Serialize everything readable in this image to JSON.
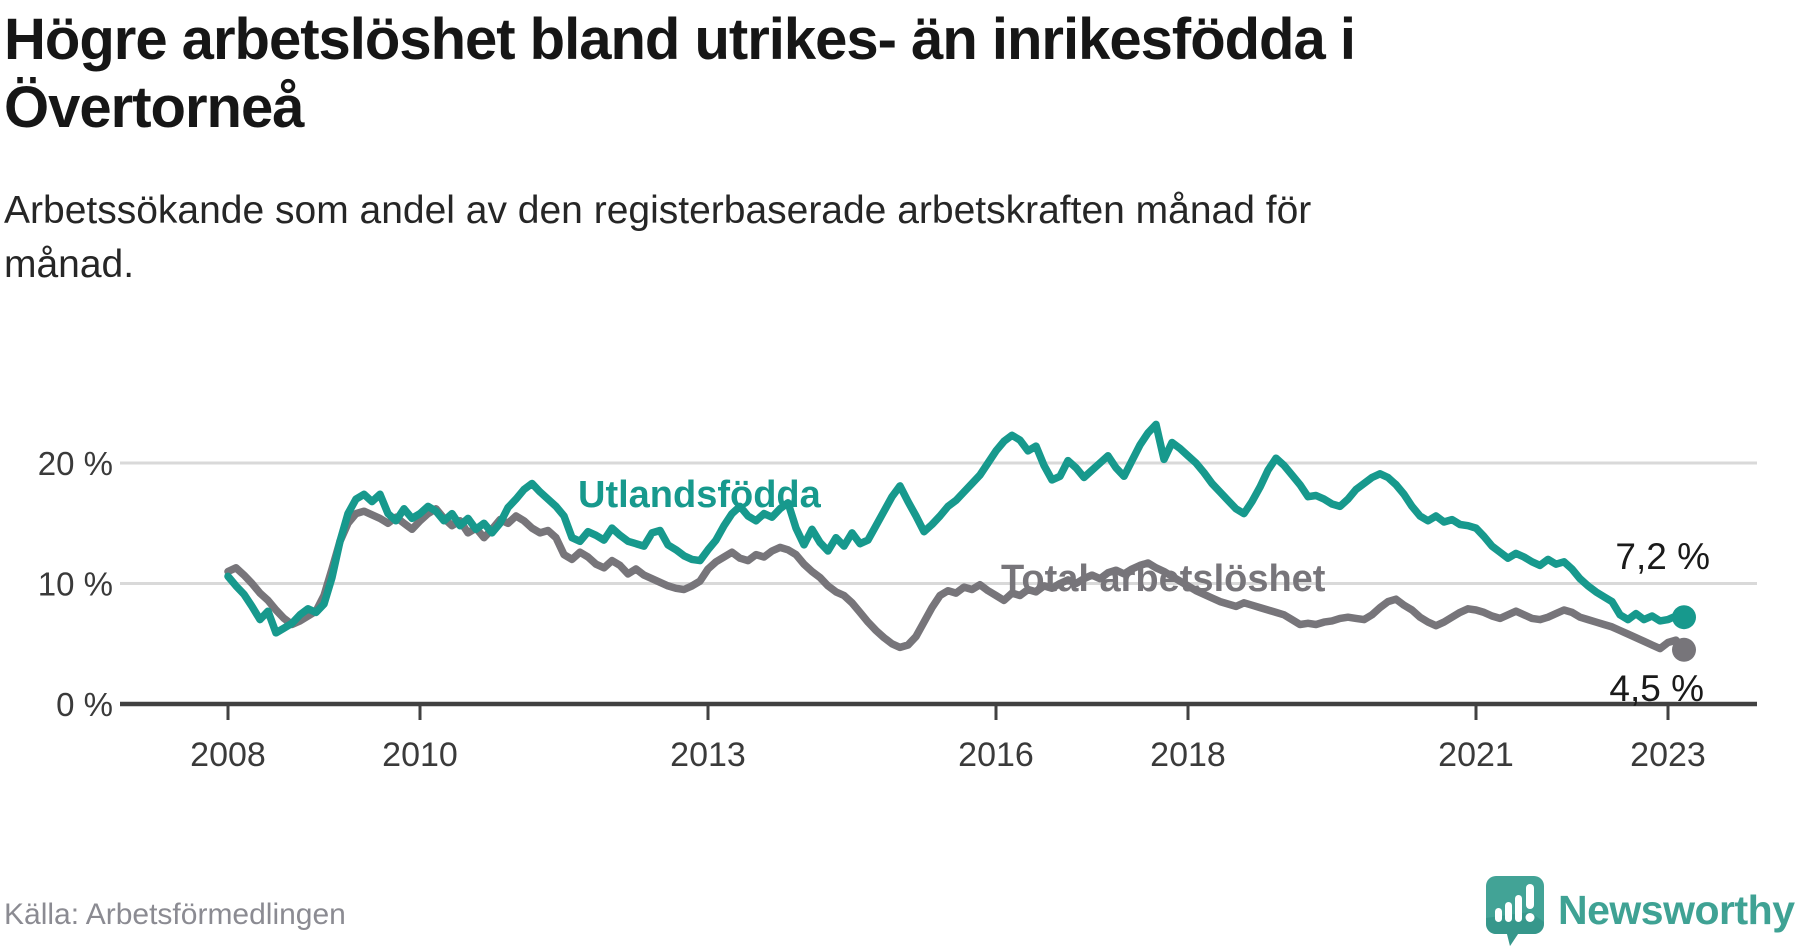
{
  "page": {
    "title_lines": [
      "Högre arbetslöshet bland utrikes- än inrikesfödda i",
      "Övertorneå"
    ],
    "subtitle_lines": [
      "Arbetssökande som andel av den registerbaserade arbetskraften månad för",
      "månad."
    ],
    "source": "Källa: Arbetsförmedlingen"
  },
  "logo": {
    "text": "Newsworthy",
    "brand_color": "#3fa294",
    "icon_color": "#42a396",
    "icon_shadow_color": "#2e8e84",
    "icon_name": "newsworthy-speech-bubble-bar-chart-icon"
  },
  "chart_data": {
    "type": "line",
    "title": "Högre arbetslöshet bland utrikes- än inrikesfödda i Övertorneå",
    "subtitle": "Arbetssökande som andel av den registerbaserade arbetskraften månad för månad.",
    "x_axis": {
      "unit": "month",
      "start_year": 2008,
      "end_month": "2023-03",
      "tick_years": [
        2008,
        2010,
        2013,
        2016,
        2018,
        2021,
        2023
      ]
    },
    "y_axis": {
      "ticks": [
        {
          "value": 0,
          "label": "0 %"
        },
        {
          "value": 10,
          "label": "10 %"
        },
        {
          "value": 20,
          "label": "20 %"
        }
      ],
      "range": [
        0,
        27
      ],
      "grid": true,
      "grid_color": "#d9d9d9",
      "axis_color": "#414141",
      "tick_label_color": "#3a3a3a"
    },
    "legend_position": "inline-labels",
    "series": [
      {
        "name": "Utlandsfödda",
        "color": "#17998d",
        "end_label": "7,2 %",
        "end_value": 7.2,
        "values": [
          10.6,
          9.8,
          9.1,
          8.1,
          7.0,
          7.7,
          5.9,
          6.3,
          6.7,
          7.4,
          7.9,
          7.6,
          8.3,
          10.5,
          13.5,
          15.8,
          17.0,
          17.4,
          16.8,
          17.4,
          15.8,
          15.2,
          16.2,
          15.4,
          15.8,
          16.4,
          16.0,
          15.2,
          15.8,
          14.8,
          15.4,
          14.5,
          15.0,
          14.2,
          15.0,
          16.3,
          17.0,
          17.8,
          18.3,
          17.6,
          17.0,
          16.4,
          15.6,
          13.8,
          13.5,
          14.3,
          14.0,
          13.6,
          14.6,
          14.0,
          13.5,
          13.3,
          13.1,
          14.2,
          14.4,
          13.2,
          12.8,
          12.3,
          12.0,
          11.9,
          12.8,
          13.6,
          14.8,
          15.8,
          16.4,
          15.6,
          15.2,
          15.8,
          15.5,
          16.2,
          16.7,
          14.6,
          13.2,
          14.5,
          13.4,
          12.7,
          13.8,
          13.1,
          14.2,
          13.3,
          13.6,
          14.8,
          16.0,
          17.2,
          18.1,
          16.8,
          15.6,
          14.3,
          14.9,
          15.6,
          16.4,
          16.9,
          17.6,
          18.3,
          19.0,
          20.0,
          21.0,
          21.8,
          22.3,
          21.9,
          21.0,
          21.4,
          19.8,
          18.6,
          18.9,
          20.2,
          19.6,
          18.8,
          19.4,
          20.0,
          20.6,
          19.6,
          18.9,
          20.2,
          21.5,
          22.5,
          23.2,
          20.3,
          21.7,
          21.2,
          20.6,
          20.0,
          19.2,
          18.3,
          17.6,
          16.9,
          16.2,
          15.8,
          16.8,
          18.0,
          19.4,
          20.4,
          19.8,
          19.0,
          18.2,
          17.2,
          17.3,
          17.0,
          16.6,
          16.4,
          17.0,
          17.8,
          18.3,
          18.8,
          19.1,
          18.8,
          18.2,
          17.4,
          16.4,
          15.6,
          15.2,
          15.6,
          15.1,
          15.3,
          14.9,
          14.8,
          14.6,
          13.9,
          13.1,
          12.6,
          12.1,
          12.5,
          12.2,
          11.8,
          11.5,
          12.0,
          11.6,
          11.8,
          11.2,
          10.4,
          9.8,
          9.3,
          8.9,
          8.5,
          7.4,
          7.0,
          7.5,
          7.0,
          7.3,
          6.9,
          7.0,
          7.3,
          7.2
        ]
      },
      {
        "name": "Total arbetslöshet",
        "color": "#77757a",
        "end_label": "4,5 %",
        "end_value": 4.5,
        "values": [
          11.0,
          11.3,
          10.7,
          10.0,
          9.2,
          8.6,
          7.8,
          7.1,
          6.6,
          6.9,
          7.3,
          7.7,
          9.0,
          11.2,
          13.5,
          15.0,
          15.8,
          16.0,
          15.7,
          15.4,
          15.0,
          15.5,
          15.0,
          14.5,
          15.2,
          15.8,
          16.2,
          15.4,
          14.8,
          15.2,
          14.2,
          14.6,
          13.8,
          14.5,
          15.3,
          15.0,
          15.6,
          15.2,
          14.6,
          14.2,
          14.4,
          13.8,
          12.4,
          12.0,
          12.6,
          12.2,
          11.6,
          11.3,
          11.9,
          11.5,
          10.8,
          11.2,
          10.7,
          10.4,
          10.1,
          9.8,
          9.6,
          9.5,
          9.8,
          10.2,
          11.2,
          11.8,
          12.2,
          12.6,
          12.1,
          11.9,
          12.4,
          12.2,
          12.7,
          13.0,
          12.8,
          12.4,
          11.6,
          11.0,
          10.5,
          9.8,
          9.3,
          9.0,
          8.4,
          7.6,
          6.8,
          6.1,
          5.5,
          5.0,
          4.7,
          4.9,
          5.6,
          6.8,
          8.0,
          9.0,
          9.4,
          9.2,
          9.7,
          9.5,
          9.9,
          9.4,
          9.0,
          8.6,
          9.2,
          9.0,
          9.5,
          9.3,
          9.8,
          9.6,
          10.0,
          10.3,
          10.0,
          10.4,
          10.7,
          10.4,
          10.9,
          11.1,
          10.8,
          11.2,
          11.5,
          11.7,
          11.3,
          11.0,
          10.6,
          10.2,
          9.8,
          9.4,
          9.1,
          8.8,
          8.5,
          8.3,
          8.1,
          8.4,
          8.2,
          8.0,
          7.8,
          7.6,
          7.4,
          7.0,
          6.6,
          6.7,
          6.6,
          6.8,
          6.9,
          7.1,
          7.2,
          7.1,
          7.0,
          7.4,
          8.0,
          8.5,
          8.7,
          8.2,
          7.8,
          7.2,
          6.8,
          6.5,
          6.8,
          7.2,
          7.6,
          7.9,
          7.8,
          7.6,
          7.3,
          7.1,
          7.4,
          7.7,
          7.4,
          7.1,
          7.0,
          7.2,
          7.5,
          7.8,
          7.6,
          7.2,
          7.0,
          6.8,
          6.6,
          6.4,
          6.1,
          5.8,
          5.5,
          5.2,
          4.9,
          4.6,
          5.1,
          5.3,
          4.5
        ]
      }
    ]
  }
}
